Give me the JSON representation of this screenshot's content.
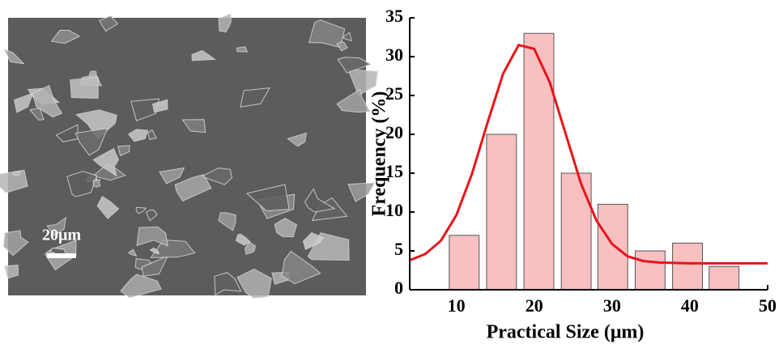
{
  "image": {
    "scale_label": "20μm"
  },
  "chart_data": {
    "type": "bar",
    "x_label": "Practical Size (μm)",
    "y_label": "Frequency (%)",
    "x": [
      11,
      15.8,
      20.6,
      25.4,
      30.1,
      34.9,
      39.7,
      44.4
    ],
    "values": [
      7,
      20,
      33,
      15,
      11,
      5,
      6,
      3
    ],
    "color": "#f9c0c1",
    "edge_color": "#555555",
    "fit": {
      "type": "line",
      "color": "#e8141b",
      "x": [
        4,
        6,
        8,
        10,
        12,
        14,
        16,
        18,
        20,
        22,
        24,
        26,
        28,
        30,
        32,
        34,
        36,
        40,
        44,
        48,
        50
      ],
      "values": [
        3.8,
        4.6,
        6.3,
        9.6,
        14.9,
        21.5,
        27.8,
        31.5,
        31.0,
        26.7,
        20.2,
        13.7,
        8.9,
        5.9,
        4.3,
        3.7,
        3.5,
        3.4,
        3.4,
        3.4,
        3.4
      ]
    },
    "xlim": [
      4,
      50
    ],
    "xticks": [
      10,
      20,
      30,
      40,
      50
    ],
    "ylim": [
      0,
      35
    ],
    "yticks": [
      0,
      5,
      10,
      15,
      20,
      25,
      30,
      35
    ]
  }
}
